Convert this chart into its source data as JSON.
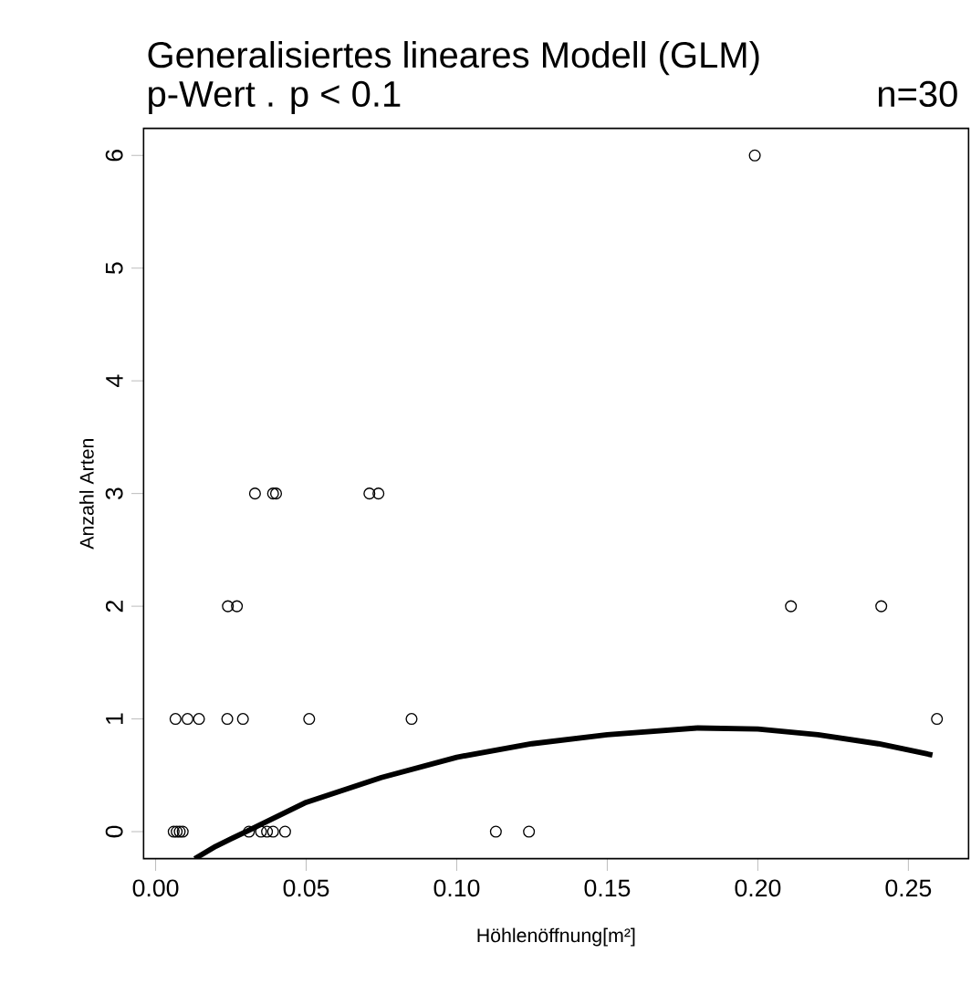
{
  "chart_data": {
    "type": "scatter",
    "title": "Generalisiertes lineares Modell (GLM)",
    "subtitle": "p-Wert . p < 0.1",
    "annotations": [
      "n=30"
    ],
    "xlabel": "Höhlenöffnung[m²]",
    "ylabel": "Anzahl Arten",
    "xlim": [
      -0.004,
      0.27
    ],
    "ylim": [
      -0.24,
      6.24
    ],
    "xticks": [
      {
        "value": 0,
        "label": "0.00"
      },
      0.05,
      {
        "value": 0.1,
        "label": "0.10"
      },
      0.15,
      {
        "value": 0.2,
        "label": "0.20"
      },
      0.25
    ],
    "yticks": [
      0,
      1,
      2,
      3,
      4,
      5,
      6
    ],
    "series": [
      {
        "marker": "circle",
        "color": "#000000",
        "x": [
          0.006,
          0.007,
          0.008,
          0.009,
          0.031,
          0.035,
          0.037,
          0.039,
          0.043,
          0.113,
          0.124,
          0.0066,
          0.0106,
          0.0144,
          0.0238,
          0.029,
          0.051,
          0.085,
          0.2595,
          0.024,
          0.027,
          0.211,
          0.241,
          0.033,
          0.039,
          0.04,
          0.071,
          0.074,
          0.199
        ],
        "values": [
          0,
          0,
          0,
          0,
          0,
          0,
          0,
          0,
          0,
          0,
          0,
          1,
          1,
          1,
          1,
          1,
          1,
          1,
          1,
          2,
          2,
          2,
          2,
          3,
          3,
          3,
          3,
          3,
          6
        ]
      },
      {
        "type": "line",
        "marker": "none",
        "color": "#000000",
        "x": [
          0.013,
          0.02,
          0.03,
          0.05,
          0.075,
          0.1,
          0.125,
          0.15,
          0.18,
          0.2,
          0.22,
          0.24,
          0.258
        ],
        "values": [
          -0.24,
          -0.13,
          0.0,
          0.26,
          0.48,
          0.66,
          0.78,
          0.86,
          0.92,
          0.91,
          0.86,
          0.78,
          0.68
        ]
      }
    ]
  }
}
